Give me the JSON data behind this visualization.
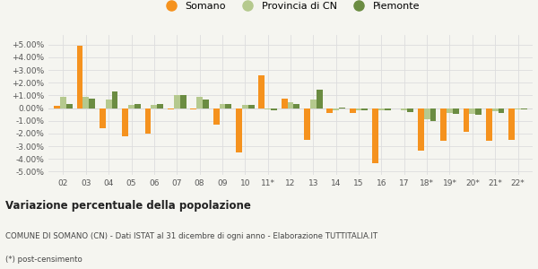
{
  "years": [
    "02",
    "03",
    "04",
    "05",
    "06",
    "07",
    "08",
    "09",
    "10",
    "11*",
    "12",
    "13",
    "14",
    "15",
    "16",
    "17",
    "18*",
    "19*",
    "20*",
    "21*",
    "22*"
  ],
  "somano": [
    0.2,
    4.9,
    -1.6,
    -2.2,
    -2.0,
    -0.1,
    -0.1,
    -1.3,
    -3.5,
    2.55,
    0.75,
    -2.5,
    -0.35,
    -0.35,
    -4.3,
    0.0,
    -3.35,
    -2.55,
    -1.85,
    -2.6,
    -2.5
  ],
  "provincia": [
    0.9,
    0.85,
    0.65,
    0.25,
    0.25,
    1.05,
    0.85,
    0.3,
    0.25,
    -0.1,
    0.45,
    0.65,
    -0.2,
    -0.15,
    -0.15,
    -0.2,
    -0.85,
    -0.35,
    -0.45,
    -0.25,
    -0.1
  ],
  "piemonte": [
    0.35,
    0.75,
    1.3,
    0.3,
    0.3,
    1.05,
    0.65,
    0.3,
    0.25,
    -0.15,
    0.35,
    1.45,
    0.05,
    -0.15,
    -0.2,
    -0.3,
    -1.05,
    -0.45,
    -0.55,
    -0.4,
    -0.1
  ],
  "color_somano": "#f5921e",
  "color_provincia": "#b5c98e",
  "color_piemonte": "#6b8c42",
  "bg_color": "#f5f5f0",
  "grid_color": "#dddddd",
  "ylim": [
    -5.25,
    5.75
  ],
  "yticks": [
    -5.0,
    -4.0,
    -3.0,
    -2.0,
    -1.0,
    0.0,
    1.0,
    2.0,
    3.0,
    4.0,
    5.0
  ],
  "title": "Variazione percentuale della popolazione",
  "subtitle": "COMUNE DI SOMANO (CN) - Dati ISTAT al 31 dicembre di ogni anno - Elaborazione TUTTITALIA.IT",
  "footnote": "(*) post-censimento",
  "bar_width": 0.27
}
